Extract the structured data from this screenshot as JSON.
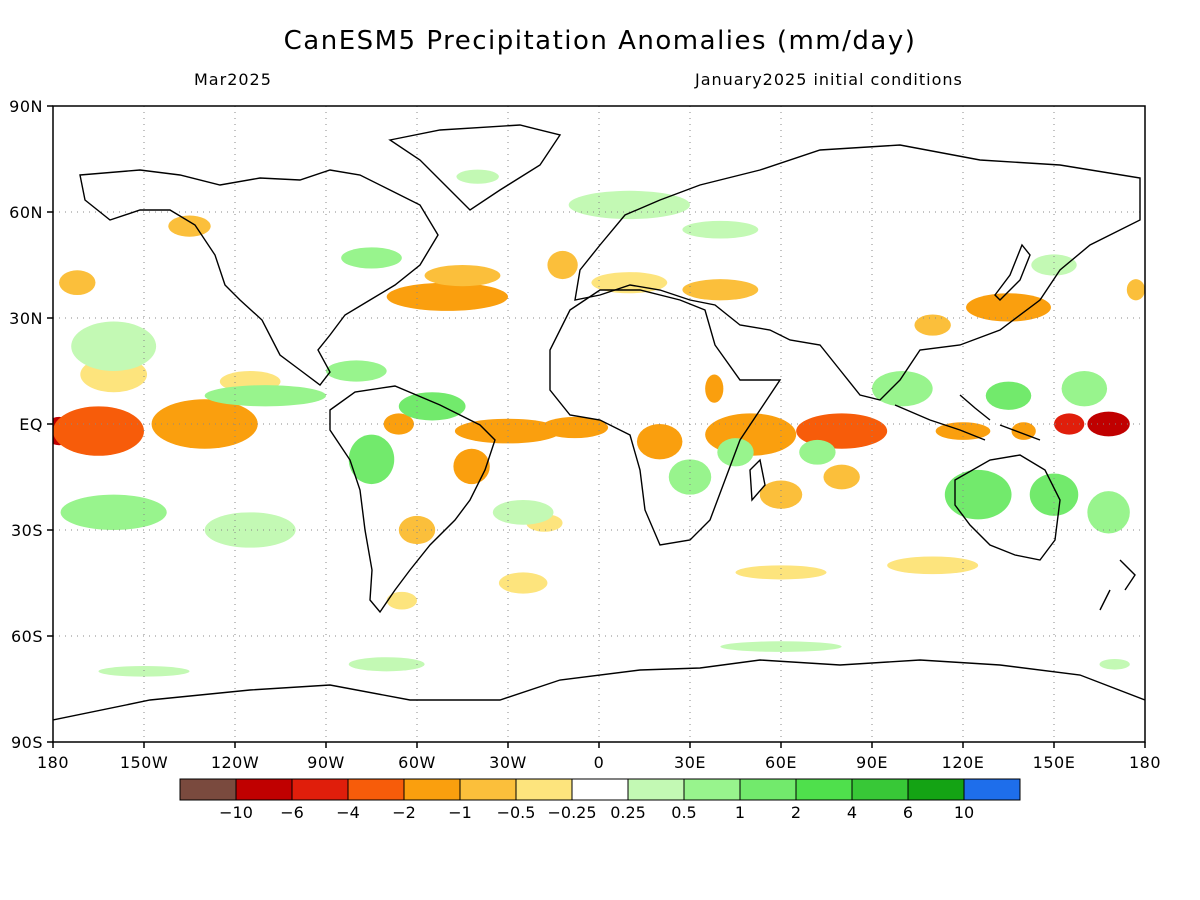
{
  "title": "CanESM5 Precipitation Anomalies (mm/day)",
  "valid_month": "Mar2025",
  "init_conditions": "January2025 initial conditions",
  "lat_ticks": [
    "90N",
    "60N",
    "30N",
    "EQ",
    "30S",
    "60S",
    "90S"
  ],
  "lon_ticks": [
    "180",
    "150W",
    "120W",
    "90W",
    "60W",
    "30W",
    "0",
    "30E",
    "60E",
    "90E",
    "120E",
    "150E",
    "180"
  ],
  "colorbar": {
    "colors": [
      "#7a4a3e",
      "#c00000",
      "#e01e0b",
      "#f75c0a",
      "#fa9f0e",
      "#fbbf3b",
      "#fde47d",
      "#ffffff",
      "#c3f9b4",
      "#98f48d",
      "#72ea6c",
      "#4fe04c",
      "#38c837",
      "#14a314",
      "#1e6eeb"
    ],
    "labels": [
      "−10",
      "−6",
      "−4",
      "−2",
      "−1",
      "−0.5",
      "−0.25",
      "0.25",
      "0.5",
      "1",
      "2",
      "4",
      "6",
      "10"
    ]
  },
  "chart_data": {
    "type": "map",
    "variable": "Precipitation anomaly",
    "units": "mm/day",
    "x_range": [
      -180,
      180
    ],
    "y_range": [
      -90,
      90
    ],
    "grid": true,
    "anomaly_regions": [
      {
        "lon": -178,
        "lat": -2,
        "w": 10,
        "h": 8,
        "value": -8
      },
      {
        "lon": -165,
        "lat": -2,
        "w": 30,
        "h": 14,
        "value": -3
      },
      {
        "lon": -130,
        "lat": 0,
        "w": 35,
        "h": 14,
        "value": -1.5
      },
      {
        "lon": -160,
        "lat": 14,
        "w": 22,
        "h": 10,
        "value": -0.4
      },
      {
        "lon": -115,
        "lat": 12,
        "w": 20,
        "h": 6,
        "value": -0.4
      },
      {
        "lon": -172,
        "lat": 40,
        "w": 12,
        "h": 7,
        "value": -0.7
      },
      {
        "lon": -135,
        "lat": 56,
        "w": 14,
        "h": 6,
        "value": -0.5
      },
      {
        "lon": -50,
        "lat": 36,
        "w": 40,
        "h": 8,
        "value": -1.2
      },
      {
        "lon": -45,
        "lat": 42,
        "w": 25,
        "h": 6,
        "value": -0.6
      },
      {
        "lon": -30,
        "lat": -2,
        "w": 35,
        "h": 7,
        "value": -1.8
      },
      {
        "lon": -8,
        "lat": -1,
        "w": 22,
        "h": 6,
        "value": -1
      },
      {
        "lon": -66,
        "lat": 0,
        "w": 10,
        "h": 6,
        "value": -1.5
      },
      {
        "lon": -42,
        "lat": -12,
        "w": 12,
        "h": 10,
        "value": -1
      },
      {
        "lon": -60,
        "lat": -30,
        "w": 12,
        "h": 8,
        "value": -0.7
      },
      {
        "lon": -65,
        "lat": -50,
        "w": 10,
        "h": 5,
        "value": -0.4
      },
      {
        "lon": -25,
        "lat": -45,
        "w": 16,
        "h": 6,
        "value": -0.4
      },
      {
        "lon": -18,
        "lat": -28,
        "w": 12,
        "h": 5,
        "value": -0.3
      },
      {
        "lon": -12,
        "lat": 45,
        "w": 10,
        "h": 8,
        "value": -0.5
      },
      {
        "lon": 10,
        "lat": 40,
        "w": 25,
        "h": 6,
        "value": -0.4
      },
      {
        "lon": 40,
        "lat": 38,
        "w": 25,
        "h": 6,
        "value": -0.8
      },
      {
        "lon": 38,
        "lat": 10,
        "w": 6,
        "h": 8,
        "value": -1
      },
      {
        "lon": 20,
        "lat": -5,
        "w": 15,
        "h": 10,
        "value": -1
      },
      {
        "lon": 50,
        "lat": -3,
        "w": 30,
        "h": 12,
        "value": -1.5
      },
      {
        "lon": 80,
        "lat": -2,
        "w": 30,
        "h": 10,
        "value": -2
      },
      {
        "lon": 60,
        "lat": -20,
        "w": 14,
        "h": 8,
        "value": -0.7
      },
      {
        "lon": 80,
        "lat": -15,
        "w": 12,
        "h": 7,
        "value": -0.6
      },
      {
        "lon": 120,
        "lat": -2,
        "w": 18,
        "h": 5,
        "value": -1.5
      },
      {
        "lon": 140,
        "lat": -2,
        "w": 8,
        "h": 5,
        "value": -1.5
      },
      {
        "lon": 168,
        "lat": 0,
        "w": 14,
        "h": 7,
        "value": -8
      },
      {
        "lon": 155,
        "lat": 0,
        "w": 10,
        "h": 6,
        "value": -4
      },
      {
        "lon": 135,
        "lat": 33,
        "w": 28,
        "h": 8,
        "value": -1.5
      },
      {
        "lon": 110,
        "lat": 28,
        "w": 12,
        "h": 6,
        "value": -0.6
      },
      {
        "lon": 110,
        "lat": -40,
        "w": 30,
        "h": 5,
        "value": -0.4
      },
      {
        "lon": 60,
        "lat": -42,
        "w": 30,
        "h": 4,
        "value": -0.4
      },
      {
        "lon": 177,
        "lat": 38,
        "w": 6,
        "h": 6,
        "value": -0.6
      },
      {
        "lon": -160,
        "lat": 22,
        "w": 28,
        "h": 14,
        "value": 0.5
      },
      {
        "lon": -160,
        "lat": -25,
        "w": 35,
        "h": 10,
        "value": 0.6
      },
      {
        "lon": -115,
        "lat": -30,
        "w": 30,
        "h": 10,
        "value": 0.4
      },
      {
        "lon": -75,
        "lat": -10,
        "w": 15,
        "h": 14,
        "value": 1.2
      },
      {
        "lon": -55,
        "lat": 5,
        "w": 22,
        "h": 8,
        "value": 1.3
      },
      {
        "lon": -80,
        "lat": 15,
        "w": 20,
        "h": 6,
        "value": 0.7
      },
      {
        "lon": -110,
        "lat": 8,
        "w": 40,
        "h": 6,
        "value": 0.6
      },
      {
        "lon": -75,
        "lat": 47,
        "w": 20,
        "h": 6,
        "value": 0.6
      },
      {
        "lon": -40,
        "lat": 70,
        "w": 14,
        "h": 4,
        "value": 0.4
      },
      {
        "lon": -25,
        "lat": -25,
        "w": 20,
        "h": 7,
        "value": 0.5
      },
      {
        "lon": 10,
        "lat": 62,
        "w": 40,
        "h": 8,
        "value": 0.5
      },
      {
        "lon": 40,
        "lat": 55,
        "w": 25,
        "h": 5,
        "value": 0.4
      },
      {
        "lon": 30,
        "lat": -15,
        "w": 14,
        "h": 10,
        "value": 1
      },
      {
        "lon": 45,
        "lat": -8,
        "w": 12,
        "h": 8,
        "value": 1
      },
      {
        "lon": 72,
        "lat": -8,
        "w": 12,
        "h": 7,
        "value": 0.7
      },
      {
        "lon": 100,
        "lat": 10,
        "w": 20,
        "h": 10,
        "value": 0.7
      },
      {
        "lon": 125,
        "lat": -20,
        "w": 22,
        "h": 14,
        "value": 1.5
      },
      {
        "lon": 150,
        "lat": -20,
        "w": 16,
        "h": 12,
        "value": 1.5
      },
      {
        "lon": 135,
        "lat": 8,
        "w": 15,
        "h": 8,
        "value": 1.3
      },
      {
        "lon": 160,
        "lat": 10,
        "w": 15,
        "h": 10,
        "value": 1
      },
      {
        "lon": 168,
        "lat": -25,
        "w": 14,
        "h": 12,
        "value": 0.8
      },
      {
        "lon": 150,
        "lat": 45,
        "w": 15,
        "h": 6,
        "value": 0.4
      },
      {
        "lon": -150,
        "lat": -70,
        "w": 30,
        "h": 3,
        "value": 0.4
      },
      {
        "lon": -70,
        "lat": -68,
        "w": 25,
        "h": 4,
        "value": 0.4
      },
      {
        "lon": 60,
        "lat": -63,
        "w": 40,
        "h": 3,
        "value": 0.4
      },
      {
        "lon": 170,
        "lat": -68,
        "w": 10,
        "h": 3,
        "value": 0.4
      }
    ]
  }
}
